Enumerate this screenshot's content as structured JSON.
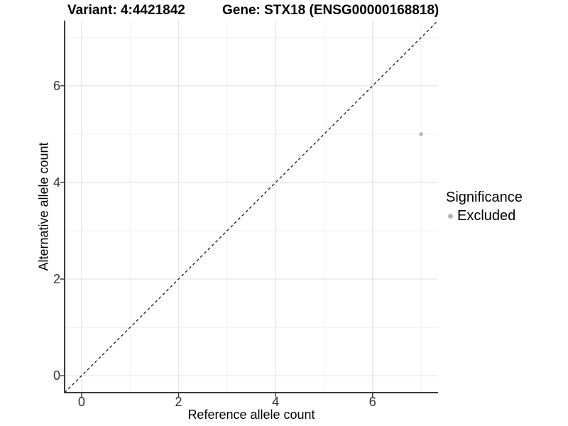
{
  "chart_data": {
    "type": "scatter",
    "title_left": "Variant: 4:4421842",
    "title_right": "Gene: STX18 (ENSG00000168818)",
    "xlabel": "Reference allele count",
    "ylabel": "Alternative allele count",
    "xlim": [
      -0.35,
      7.35
    ],
    "ylim": [
      -0.35,
      7.35
    ],
    "x_ticks": [
      0,
      2,
      4,
      6
    ],
    "y_ticks": [
      0,
      2,
      4,
      6
    ],
    "x_minor_gridlines": [
      1,
      3,
      5,
      7
    ],
    "y_minor_gridlines": [
      1,
      3,
      5,
      7
    ],
    "grid": "major+minor",
    "legend_position": "right",
    "series": [
      {
        "name": "Excluded",
        "color": "#b5b5b5",
        "marker": "point",
        "points": [
          {
            "x": 7,
            "y": 5
          }
        ]
      }
    ],
    "reference_line": {
      "shape": "y=x identity",
      "from": [
        -0.35,
        -0.35
      ],
      "to": [
        7.35,
        7.35
      ],
      "style": "dashed",
      "color": "#1a1a1a"
    },
    "legend": {
      "title": "Significance",
      "items": [
        {
          "label": "Excluded",
          "color": "#b5b5b5",
          "marker": "point"
        }
      ]
    }
  },
  "colors": {
    "background": "#ffffff",
    "grid_major": "#e3e3e3",
    "grid_minor": "#eeeeee",
    "axis_line": "#3a3a3a",
    "tick_mark": "#333333",
    "tick_label": "#333333",
    "title_text": "#000000",
    "point": "#b5b5b5"
  }
}
